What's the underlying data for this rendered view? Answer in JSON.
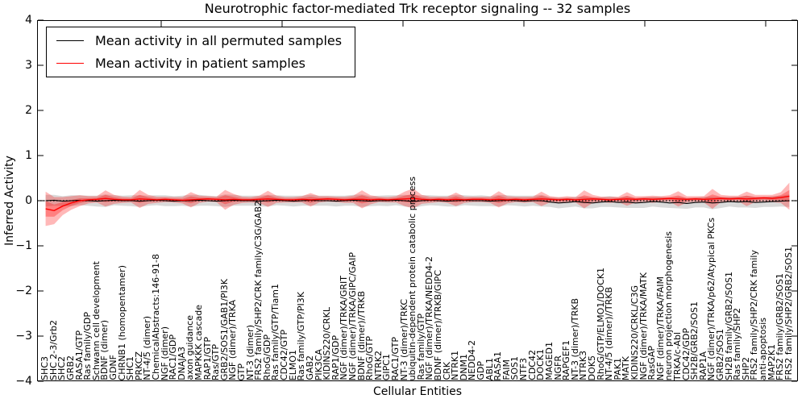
{
  "title": "Neurotrophic factor-mediated Trk receptor signaling -- 32 samples",
  "x_axis_label": "Cellular Entities",
  "y_axis_label": "Inferred Activity",
  "legend": [
    {
      "label": "Mean activity in all permuted samples",
      "color": "#000000"
    },
    {
      "label": "Mean activity in patient samples",
      "color": "#ff0000"
    }
  ],
  "colors": {
    "permuted_line": "#000000",
    "permuted_band": "#bbbbbb",
    "patient_line": "#ff0000",
    "patient_band": "#ff0000",
    "zero_line": "#000000",
    "frame": "#000000"
  },
  "chart_data": {
    "type": "line",
    "title": "Neurotrophic factor-mediated Trk receptor signaling -- 32 samples",
    "xlabel": "Cellular Entities",
    "ylabel": "Inferred Activity",
    "ylim": [
      -4,
      4
    ],
    "y_ticks": [
      4,
      3,
      2,
      1,
      0,
      -1,
      -2,
      -3,
      -4
    ],
    "legend_position": "upper left",
    "grid": false,
    "zero_line_dotted": true,
    "categories": [
      "SHC3",
      "SHC 2-3/Grb2",
      "SHC2",
      "GRB2",
      "RASA1/GTP",
      "Ras family/GDP",
      "Schwann cell development",
      "BDNF (dimer)",
      "GDNF",
      "CHRNB1 (homopentamer)",
      "SHC1",
      "PRKCZ",
      "NT-4/5 (dimer)",
      "ChemicalAbstracts:146-91-8",
      "NGF (dimer)",
      "RAC1/GDP",
      "DNAJA3",
      "axon guidance",
      "MAPKKK cascade",
      "RAP1/GTP",
      "Ras/GTP",
      "GRB2/SOS1/GAB1/PI3K",
      "NGF (dimer)/TRKA",
      "GTP",
      "NT-3 (dimer)",
      "FRS2 family/SHP2/CRK family/C3G/GAB2",
      "RhoG/GDP",
      "Ras family/GTP/Tiam1",
      "CDC42/GTP",
      "ELMO1",
      "Ras family/GTP/PI3K",
      "GAB2",
      "PIK3CA",
      "KIDINS220/CRKL",
      "RAP1/GDP",
      "NGF (dimer)/TRKA/GRIT",
      "NGF (dimer)/TRKA/GIPC/GAIP",
      "BDNF (dimer)//TRKB",
      "RhoG/GTP",
      "NTRK2",
      "GIPC1",
      "RAC1/GTP",
      "NT-3 (dimer)/TRKC",
      "ubiquitin-dependent protein catabolic process",
      "Ras family/GTP",
      "NGF (dimer)/TRKA/NEDD4-2",
      "BDNF (dimer)/TRKB/GIPC",
      "CRK",
      "NTRK1",
      "DNM1",
      "NEDD4-2",
      "GDP",
      "ABL1",
      "RASA1",
      "FAIM",
      "SOS1",
      "NTF3",
      "CDC42",
      "DOCK1",
      "MAGED1",
      "NGFR",
      "RAPGEF1",
      "NT-3 (dimer)/TRKB",
      "NTRK3",
      "DOK5",
      "RhoG/GTP/ELMO1/DOCK1",
      "NT-4/5 (dimer)//TRKB",
      "PAK1",
      "MATK",
      "KIDINS220/CRKL/C3G",
      "NGF (dimer)/TRKA/MATK",
      "RasGAP",
      "NGF (dimer)/TRKA/FAIM",
      "neuron projection morphogenesis",
      "TRKA/c-Abl",
      "CDC42/GDP",
      "SH2B/GRB2/SOS1",
      "RAP1A",
      "NGF (dimer)/TRKA/p62/Atypical PKCs",
      "GRB2/SOS1",
      "SH2B family/GRB2/SOS1",
      "Ras family/SHP2",
      "SHP2",
      "FRS2 family/SHP2/CRK family",
      "anti-apoptosis",
      "MAP2K1",
      "FRS2 family/GRB2/SOS1",
      "FRS2 family/SHP2/GRB2/SOS1"
    ],
    "series": [
      {
        "name": "Mean activity in all permuted samples",
        "color": "#000000",
        "values": [
          0.0,
          0.01,
          -0.01,
          0.0,
          0.01,
          0.0,
          -0.01,
          0.0,
          0.01,
          0.0,
          0.0,
          -0.01,
          0.0,
          0.01,
          0.0,
          -0.01,
          0.0,
          0.0,
          0.01,
          0.0,
          -0.01,
          0.0,
          0.01,
          0.0,
          0.0,
          -0.01,
          0.0,
          0.01,
          0.0,
          -0.01,
          0.0,
          0.01,
          0.0,
          0.0,
          -0.01,
          0.0,
          0.01,
          0.0,
          -0.01,
          0.0,
          0.0,
          0.01,
          0.0,
          -0.02,
          0.0,
          0.01,
          0.0,
          -0.01,
          0.0,
          0.01,
          0.0,
          0.0,
          -0.01,
          0.0,
          0.01,
          0.0,
          -0.01,
          0.0,
          0.0,
          -0.03,
          -0.05,
          -0.04,
          -0.02,
          -0.04,
          -0.05,
          -0.03,
          -0.02,
          -0.04,
          -0.03,
          -0.05,
          -0.04,
          -0.02,
          -0.03,
          -0.05,
          -0.04,
          -0.06,
          -0.04,
          -0.03,
          -0.05,
          -0.04,
          -0.02,
          -0.03,
          -0.02,
          -0.04,
          -0.03,
          -0.02,
          -0.01,
          0.0
        ],
        "band_std": [
          0.13,
          0.12,
          0.11,
          0.12,
          0.11,
          0.11,
          0.12,
          0.14,
          0.11,
          0.11,
          0.12,
          0.13,
          0.11,
          0.11,
          0.12,
          0.11,
          0.11,
          0.13,
          0.12,
          0.11,
          0.11,
          0.14,
          0.12,
          0.11,
          0.11,
          0.12,
          0.13,
          0.11,
          0.11,
          0.12,
          0.11,
          0.12,
          0.11,
          0.11,
          0.12,
          0.11,
          0.12,
          0.14,
          0.11,
          0.11,
          0.12,
          0.11,
          0.13,
          0.14,
          0.12,
          0.11,
          0.11,
          0.12,
          0.13,
          0.11,
          0.11,
          0.12,
          0.11,
          0.13,
          0.11,
          0.11,
          0.12,
          0.11,
          0.13,
          0.11,
          0.12,
          0.11,
          0.11,
          0.13,
          0.12,
          0.11,
          0.12,
          0.11,
          0.13,
          0.11,
          0.12,
          0.11,
          0.12,
          0.11,
          0.13,
          0.12,
          0.11,
          0.12,
          0.14,
          0.12,
          0.11,
          0.12,
          0.13,
          0.12,
          0.11,
          0.12,
          0.12,
          0.14
        ]
      },
      {
        "name": "Mean activity in patient samples",
        "color": "#ff0000",
        "values": [
          -0.18,
          -0.22,
          -0.12,
          -0.05,
          0.0,
          0.02,
          0.03,
          0.05,
          0.03,
          0.02,
          0.02,
          0.04,
          0.03,
          0.02,
          0.03,
          0.02,
          0.01,
          0.02,
          0.03,
          0.04,
          0.03,
          0.02,
          0.03,
          0.02,
          0.02,
          0.03,
          0.04,
          0.03,
          0.02,
          0.02,
          0.03,
          0.02,
          0.03,
          0.04,
          0.03,
          0.02,
          0.03,
          0.03,
          0.02,
          0.03,
          0.02,
          0.03,
          0.04,
          0.05,
          0.03,
          0.02,
          0.03,
          0.02,
          0.03,
          0.02,
          0.03,
          0.03,
          0.02,
          0.03,
          0.02,
          0.03,
          0.02,
          0.03,
          0.04,
          0.03,
          0.02,
          0.03,
          0.02,
          0.03,
          0.04,
          0.03,
          0.02,
          0.03,
          0.04,
          0.03,
          0.04,
          0.03,
          0.04,
          0.05,
          0.04,
          0.03,
          0.04,
          0.03,
          0.04,
          0.05,
          0.04,
          0.05,
          0.04,
          0.05,
          0.06,
          0.05,
          0.07,
          0.1
        ],
        "band_std": [
          0.38,
          0.3,
          0.2,
          0.15,
          0.12,
          0.08,
          0.07,
          0.18,
          0.1,
          0.07,
          0.06,
          0.2,
          0.1,
          0.07,
          0.06,
          0.06,
          0.07,
          0.17,
          0.08,
          0.06,
          0.06,
          0.22,
          0.12,
          0.07,
          0.06,
          0.08,
          0.18,
          0.08,
          0.06,
          0.06,
          0.07,
          0.15,
          0.07,
          0.06,
          0.06,
          0.07,
          0.08,
          0.2,
          0.1,
          0.06,
          0.06,
          0.07,
          0.16,
          0.22,
          0.1,
          0.07,
          0.06,
          0.07,
          0.15,
          0.07,
          0.06,
          0.06,
          0.07,
          0.18,
          0.08,
          0.06,
          0.07,
          0.06,
          0.16,
          0.07,
          0.06,
          0.07,
          0.06,
          0.2,
          0.09,
          0.06,
          0.07,
          0.06,
          0.15,
          0.07,
          0.06,
          0.08,
          0.06,
          0.07,
          0.17,
          0.07,
          0.06,
          0.07,
          0.22,
          0.08,
          0.07,
          0.06,
          0.16,
          0.08,
          0.07,
          0.08,
          0.12,
          0.3
        ]
      }
    ]
  }
}
